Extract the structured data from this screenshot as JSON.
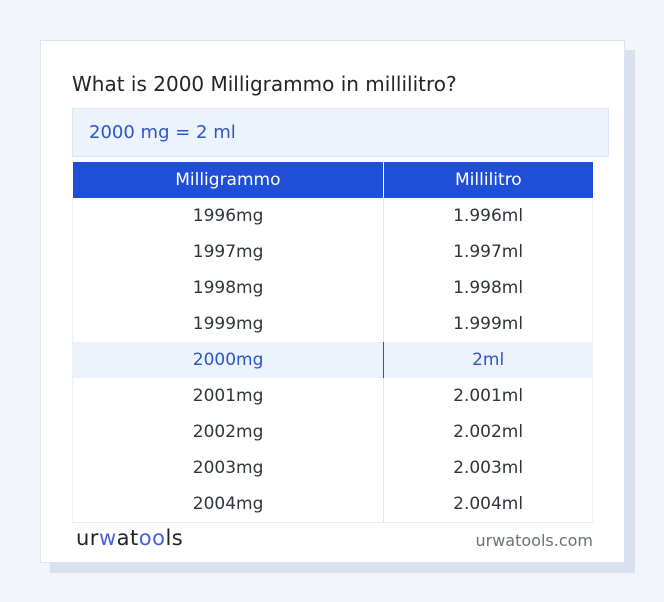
{
  "question": "What is 2000 Milligrammo in millilitro?",
  "result": "2000 mg = 2 ml",
  "table": {
    "headers": [
      "Milligrammo",
      "Millilitro"
    ],
    "rows": [
      [
        "1996mg",
        "1.996ml"
      ],
      [
        "1997mg",
        "1.997ml"
      ],
      [
        "1998mg",
        "1.998ml"
      ],
      [
        "1999mg",
        "1.999ml"
      ],
      [
        "2000mg",
        "2ml"
      ],
      [
        "2001mg",
        "2.001ml"
      ],
      [
        "2002mg",
        "2.002ml"
      ],
      [
        "2003mg",
        "2.003ml"
      ],
      [
        "2004mg",
        "2.004ml"
      ]
    ],
    "highlight_index": 4
  },
  "footer": {
    "logo_parts": [
      "ur",
      "w",
      "at",
      "oo",
      "ls"
    ],
    "site": "urwatools.com"
  },
  "colors": {
    "header_bg": "#1f4fd6",
    "accent_text": "#2d55c6",
    "highlight_bg": "#ecf3fd"
  }
}
